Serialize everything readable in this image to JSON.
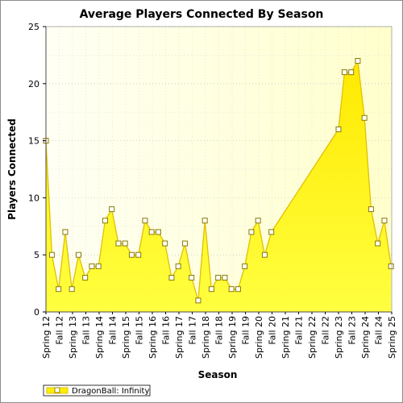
{
  "chart_data": {
    "type": "area",
    "title": "Average Players Connected By Season",
    "xlabel": "Season",
    "ylabel": "Players Connected",
    "ylim": [
      0,
      25
    ],
    "yticks": [
      0,
      5,
      10,
      15,
      20,
      25
    ],
    "xtick_labels": [
      "Spring 12",
      "Fall 12",
      "Spring 13",
      "Fall 13",
      "Spring 14",
      "Fall 14",
      "Spring 15",
      "Fall 15",
      "Spring 16",
      "Fall 16",
      "Spring 17",
      "Fall 17",
      "Spring 18",
      "Fall 18",
      "Spring 19",
      "Fall 19",
      "Spring 20",
      "Fall 20",
      "Spring 21",
      "Fall 21",
      "Spring 22",
      "Fall 22",
      "Spring 23",
      "Fall 23",
      "Spring 24",
      "Fall 24",
      "Spring 25"
    ],
    "grid": true,
    "legend_position": "bottom-left",
    "series": [
      {
        "name": "DragonBall: Infinity",
        "color": "#ffee00",
        "line_color": "#e0c000",
        "points": [
          {
            "x": 0.0,
            "y": 15
          },
          {
            "x": 0.45,
            "y": 5
          },
          {
            "x": 0.95,
            "y": 2
          },
          {
            "x": 1.45,
            "y": 7
          },
          {
            "x": 1.95,
            "y": 2
          },
          {
            "x": 2.45,
            "y": 5
          },
          {
            "x": 2.95,
            "y": 3
          },
          {
            "x": 3.45,
            "y": 4
          },
          {
            "x": 3.95,
            "y": 4
          },
          {
            "x": 4.45,
            "y": 8
          },
          {
            "x": 4.95,
            "y": 9
          },
          {
            "x": 5.45,
            "y": 6
          },
          {
            "x": 5.95,
            "y": 6
          },
          {
            "x": 6.45,
            "y": 5
          },
          {
            "x": 6.95,
            "y": 5
          },
          {
            "x": 7.45,
            "y": 8
          },
          {
            "x": 7.95,
            "y": 7
          },
          {
            "x": 8.45,
            "y": 7
          },
          {
            "x": 8.95,
            "y": 6
          },
          {
            "x": 9.45,
            "y": 3
          },
          {
            "x": 9.95,
            "y": 4
          },
          {
            "x": 10.45,
            "y": 6
          },
          {
            "x": 10.95,
            "y": 3
          },
          {
            "x": 11.45,
            "y": 1
          },
          {
            "x": 11.95,
            "y": 8
          },
          {
            "x": 12.45,
            "y": 2
          },
          {
            "x": 12.95,
            "y": 3
          },
          {
            "x": 13.45,
            "y": 3
          },
          {
            "x": 13.95,
            "y": 2
          },
          {
            "x": 14.45,
            "y": 2
          },
          {
            "x": 14.95,
            "y": 4
          },
          {
            "x": 15.45,
            "y": 7
          },
          {
            "x": 15.95,
            "y": 8
          },
          {
            "x": 16.45,
            "y": 5
          },
          {
            "x": 16.95,
            "y": 7
          },
          {
            "x": 22.0,
            "y": 16
          },
          {
            "x": 22.45,
            "y": 21
          },
          {
            "x": 22.95,
            "y": 21
          },
          {
            "x": 23.45,
            "y": 22
          },
          {
            "x": 23.95,
            "y": 17
          },
          {
            "x": 24.45,
            "y": 9
          },
          {
            "x": 24.95,
            "y": 6
          },
          {
            "x": 25.45,
            "y": 8
          },
          {
            "x": 25.95,
            "y": 4
          }
        ]
      }
    ]
  }
}
